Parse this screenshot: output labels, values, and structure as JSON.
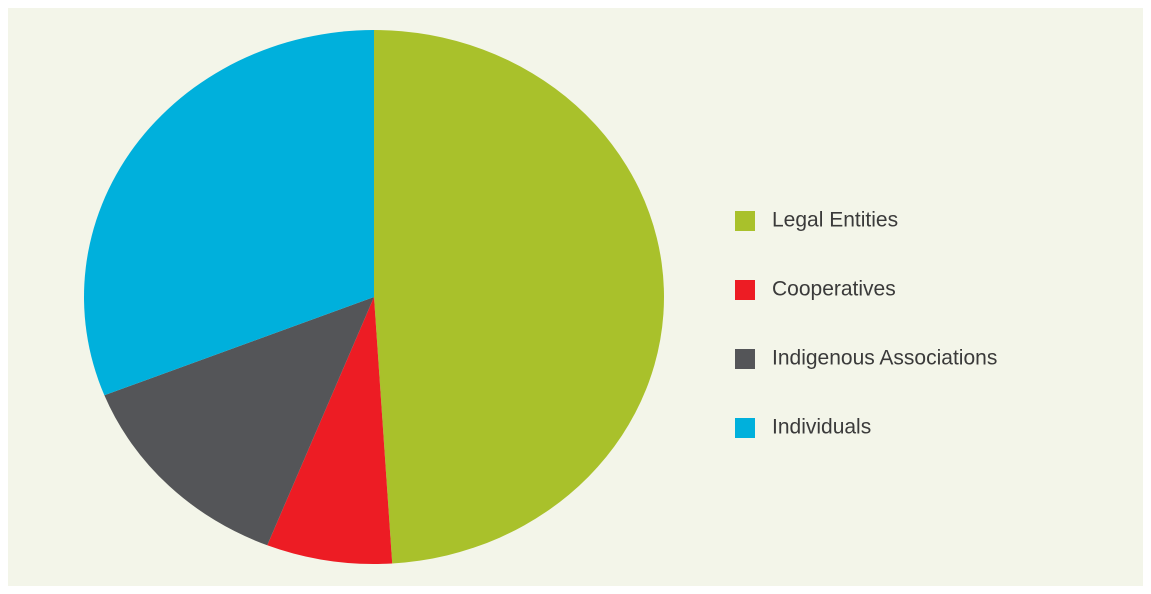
{
  "chart_data": {
    "type": "pie",
    "categories": [
      "Legal Entities",
      "Cooperatives",
      "Indigenous Associations",
      "Individuals"
    ],
    "values": [
      49,
      7,
      13,
      31
    ],
    "colors": [
      "#a9c12b",
      "#ed1c24",
      "#545558",
      "#00b0dc"
    ]
  }
}
